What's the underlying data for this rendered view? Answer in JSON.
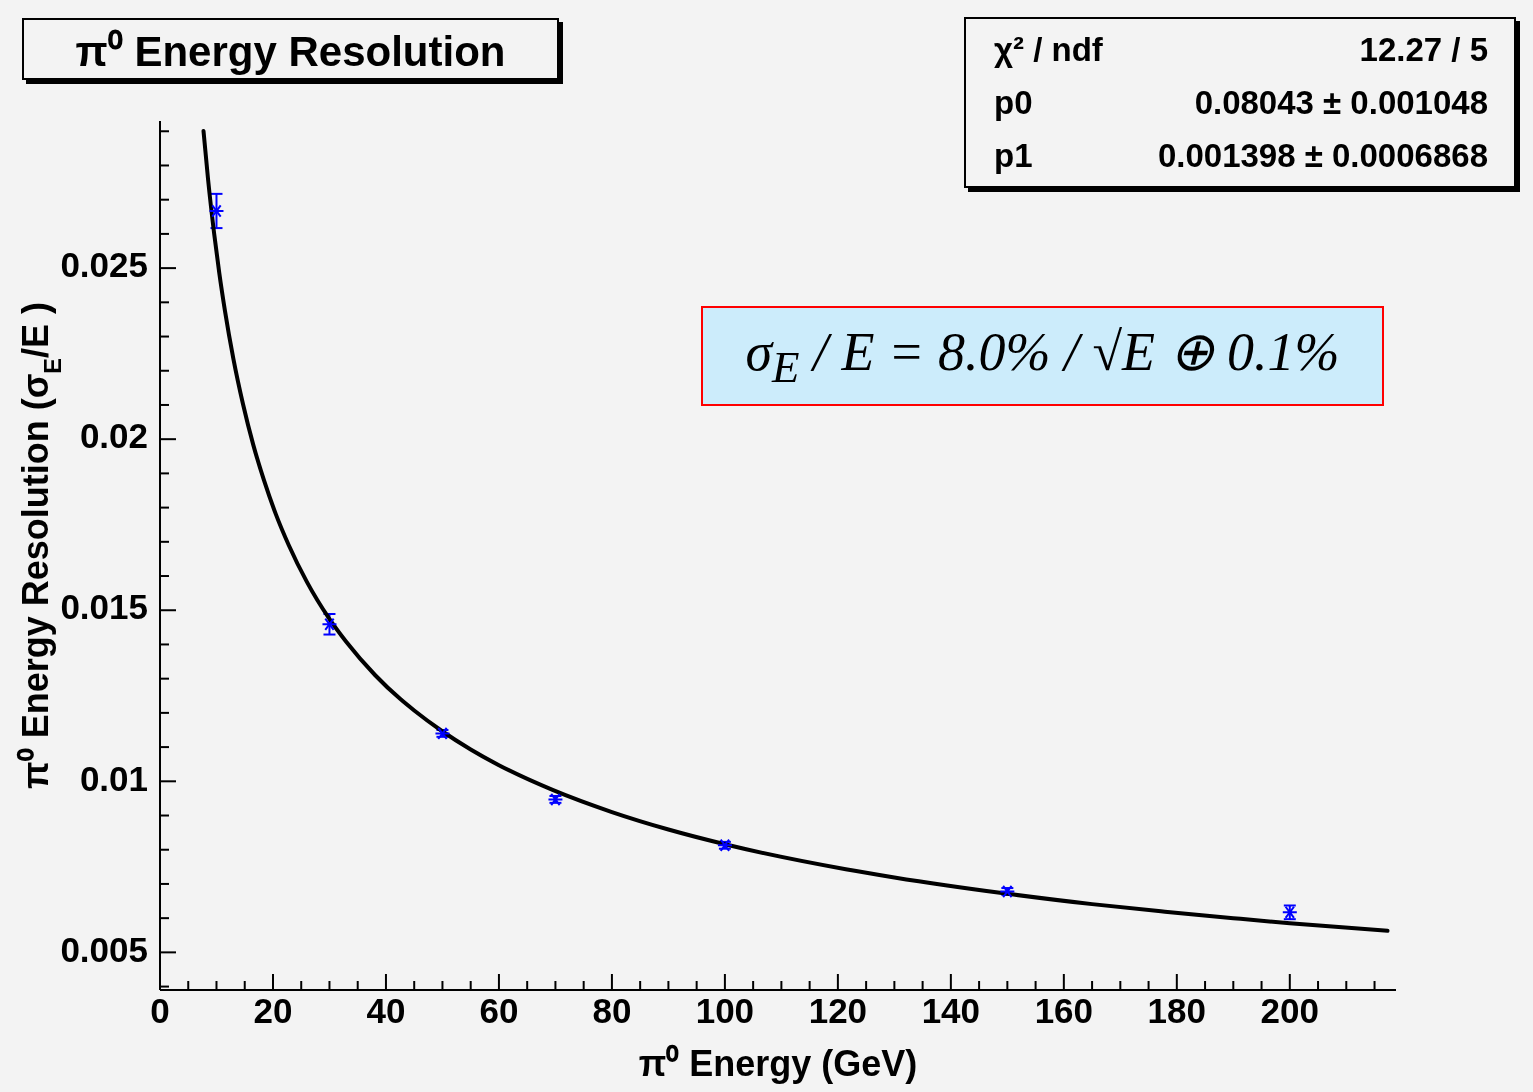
{
  "chart_data": {
    "type": "scatter",
    "title": "π⁰ Energy Resolution",
    "xlabel": "π⁰ Energy (GeV)",
    "ylabel": "π⁰ Energy Resolution (σ$_{E}$/E )",
    "series": [
      {
        "color": "#0000ff",
        "marker": "cross",
        "x": [
          10,
          30,
          50,
          70,
          100,
          150,
          200
        ],
        "values": [
          0.02667,
          0.01459,
          0.0114,
          0.00947,
          0.00813,
          0.00678,
          0.00617
        ],
        "errors": [
          0.0005,
          0.0003,
          0.0001,
          0.0001,
          0.0001,
          0.0001,
          0.0002
        ]
      },
      {
        "type": "line",
        "color": "#000000",
        "marker": "none",
        "line_style": "solid",
        "x": [
          7.7,
          8.5,
          9.6,
          10.5,
          11.5,
          13,
          14.7,
          16.5,
          18.4,
          20.5,
          22.8,
          26,
          29.9,
          33,
          38.1,
          42.5,
          45,
          49.9,
          55,
          60,
          69.6,
          80,
          90,
          100,
          121.4,
          130,
          149.7,
          165,
          177.9,
          190,
          200,
          217.3
        ],
        "values": [
          0.02901,
          0.02761,
          0.02599,
          0.02485,
          0.02375,
          0.02234,
          0.02102,
          0.01984,
          0.0188,
          0.01781,
          0.0169,
          0.01583,
          0.01477,
          0.01407,
          0.0131,
          0.01241,
          0.01207,
          0.01147,
          0.01093,
          0.01047,
          0.00974,
          0.0091,
          0.00859,
          0.00816,
          0.00743,
          0.00719,
          0.00672,
          0.00641,
          0.00619,
          0.006,
          0.00585,
          0.00563
        ]
      }
    ],
    "xlim": [
      0,
      218.8
    ],
    "ylim": [
      0.0039,
      0.0293
    ],
    "xticks": [
      0,
      {
        "value": 5,
        "label": null
      },
      {
        "value": 10,
        "label": null
      },
      {
        "value": 15,
        "label": null
      },
      20,
      {
        "value": 25,
        "label": null
      },
      {
        "value": 30,
        "label": null
      },
      {
        "value": 35,
        "label": null
      },
      40,
      {
        "value": 45,
        "label": null
      },
      {
        "value": 50,
        "label": null
      },
      {
        "value": 55,
        "label": null
      },
      60,
      {
        "value": 65,
        "label": null
      },
      {
        "value": 70,
        "label": null
      },
      {
        "value": 75,
        "label": null
      },
      80,
      {
        "value": 85,
        "label": null
      },
      {
        "value": 90,
        "label": null
      },
      {
        "value": 95,
        "label": null
      },
      100,
      {
        "value": 105,
        "label": null
      },
      {
        "value": 110,
        "label": null
      },
      {
        "value": 115,
        "label": null
      },
      120,
      {
        "value": 125,
        "label": null
      },
      {
        "value": 130,
        "label": null
      },
      {
        "value": 135,
        "label": null
      },
      140,
      {
        "value": 145,
        "label": null
      },
      {
        "value": 150,
        "label": null
      },
      {
        "value": 155,
        "label": null
      },
      160,
      {
        "value": 165,
        "label": null
      },
      {
        "value": 170,
        "label": null
      },
      {
        "value": 175,
        "label": null
      },
      180,
      {
        "value": 185,
        "label": null
      },
      {
        "value": 190,
        "label": null
      },
      {
        "value": 195,
        "label": null
      },
      200,
      {
        "value": 205,
        "label": null
      },
      {
        "value": 210,
        "label": null
      },
      {
        "value": 215,
        "label": null
      }
    ],
    "yticks": [
      {
        "value": 0.004,
        "label": null
      },
      0.005,
      {
        "value": 0.006,
        "label": null
      },
      {
        "value": 0.007,
        "label": null
      },
      {
        "value": 0.008,
        "label": null
      },
      {
        "value": 0.009,
        "label": null
      },
      0.01,
      {
        "value": 0.011,
        "label": null
      },
      {
        "value": 0.012,
        "label": null
      },
      {
        "value": 0.013,
        "label": null
      },
      {
        "value": 0.014,
        "label": null
      },
      0.015,
      {
        "value": 0.016,
        "label": null
      },
      {
        "value": 0.017,
        "label": null
      },
      {
        "value": 0.018,
        "label": null
      },
      {
        "value": 0.019,
        "label": null
      },
      0.02,
      {
        "value": 0.021,
        "label": null
      },
      {
        "value": 0.022,
        "label": null
      },
      {
        "value": 0.023,
        "label": null
      },
      {
        "value": 0.024,
        "label": null
      },
      0.025,
      {
        "value": 0.026,
        "label": null
      },
      {
        "value": 0.027,
        "label": null
      },
      {
        "value": 0.028,
        "label": null
      },
      {
        "value": 0.029,
        "label": null
      }
    ],
    "grid": false,
    "annotations": [
      "χ² / ndf",
      "12.27 / 5",
      "p0",
      "0.08043 ± 0.001048",
      "p1",
      "0.001398 ± 0.0006868",
      "σ$_{E}$ / E = 8.0% / √E ⊕ 0.1%"
    ]
  }
}
